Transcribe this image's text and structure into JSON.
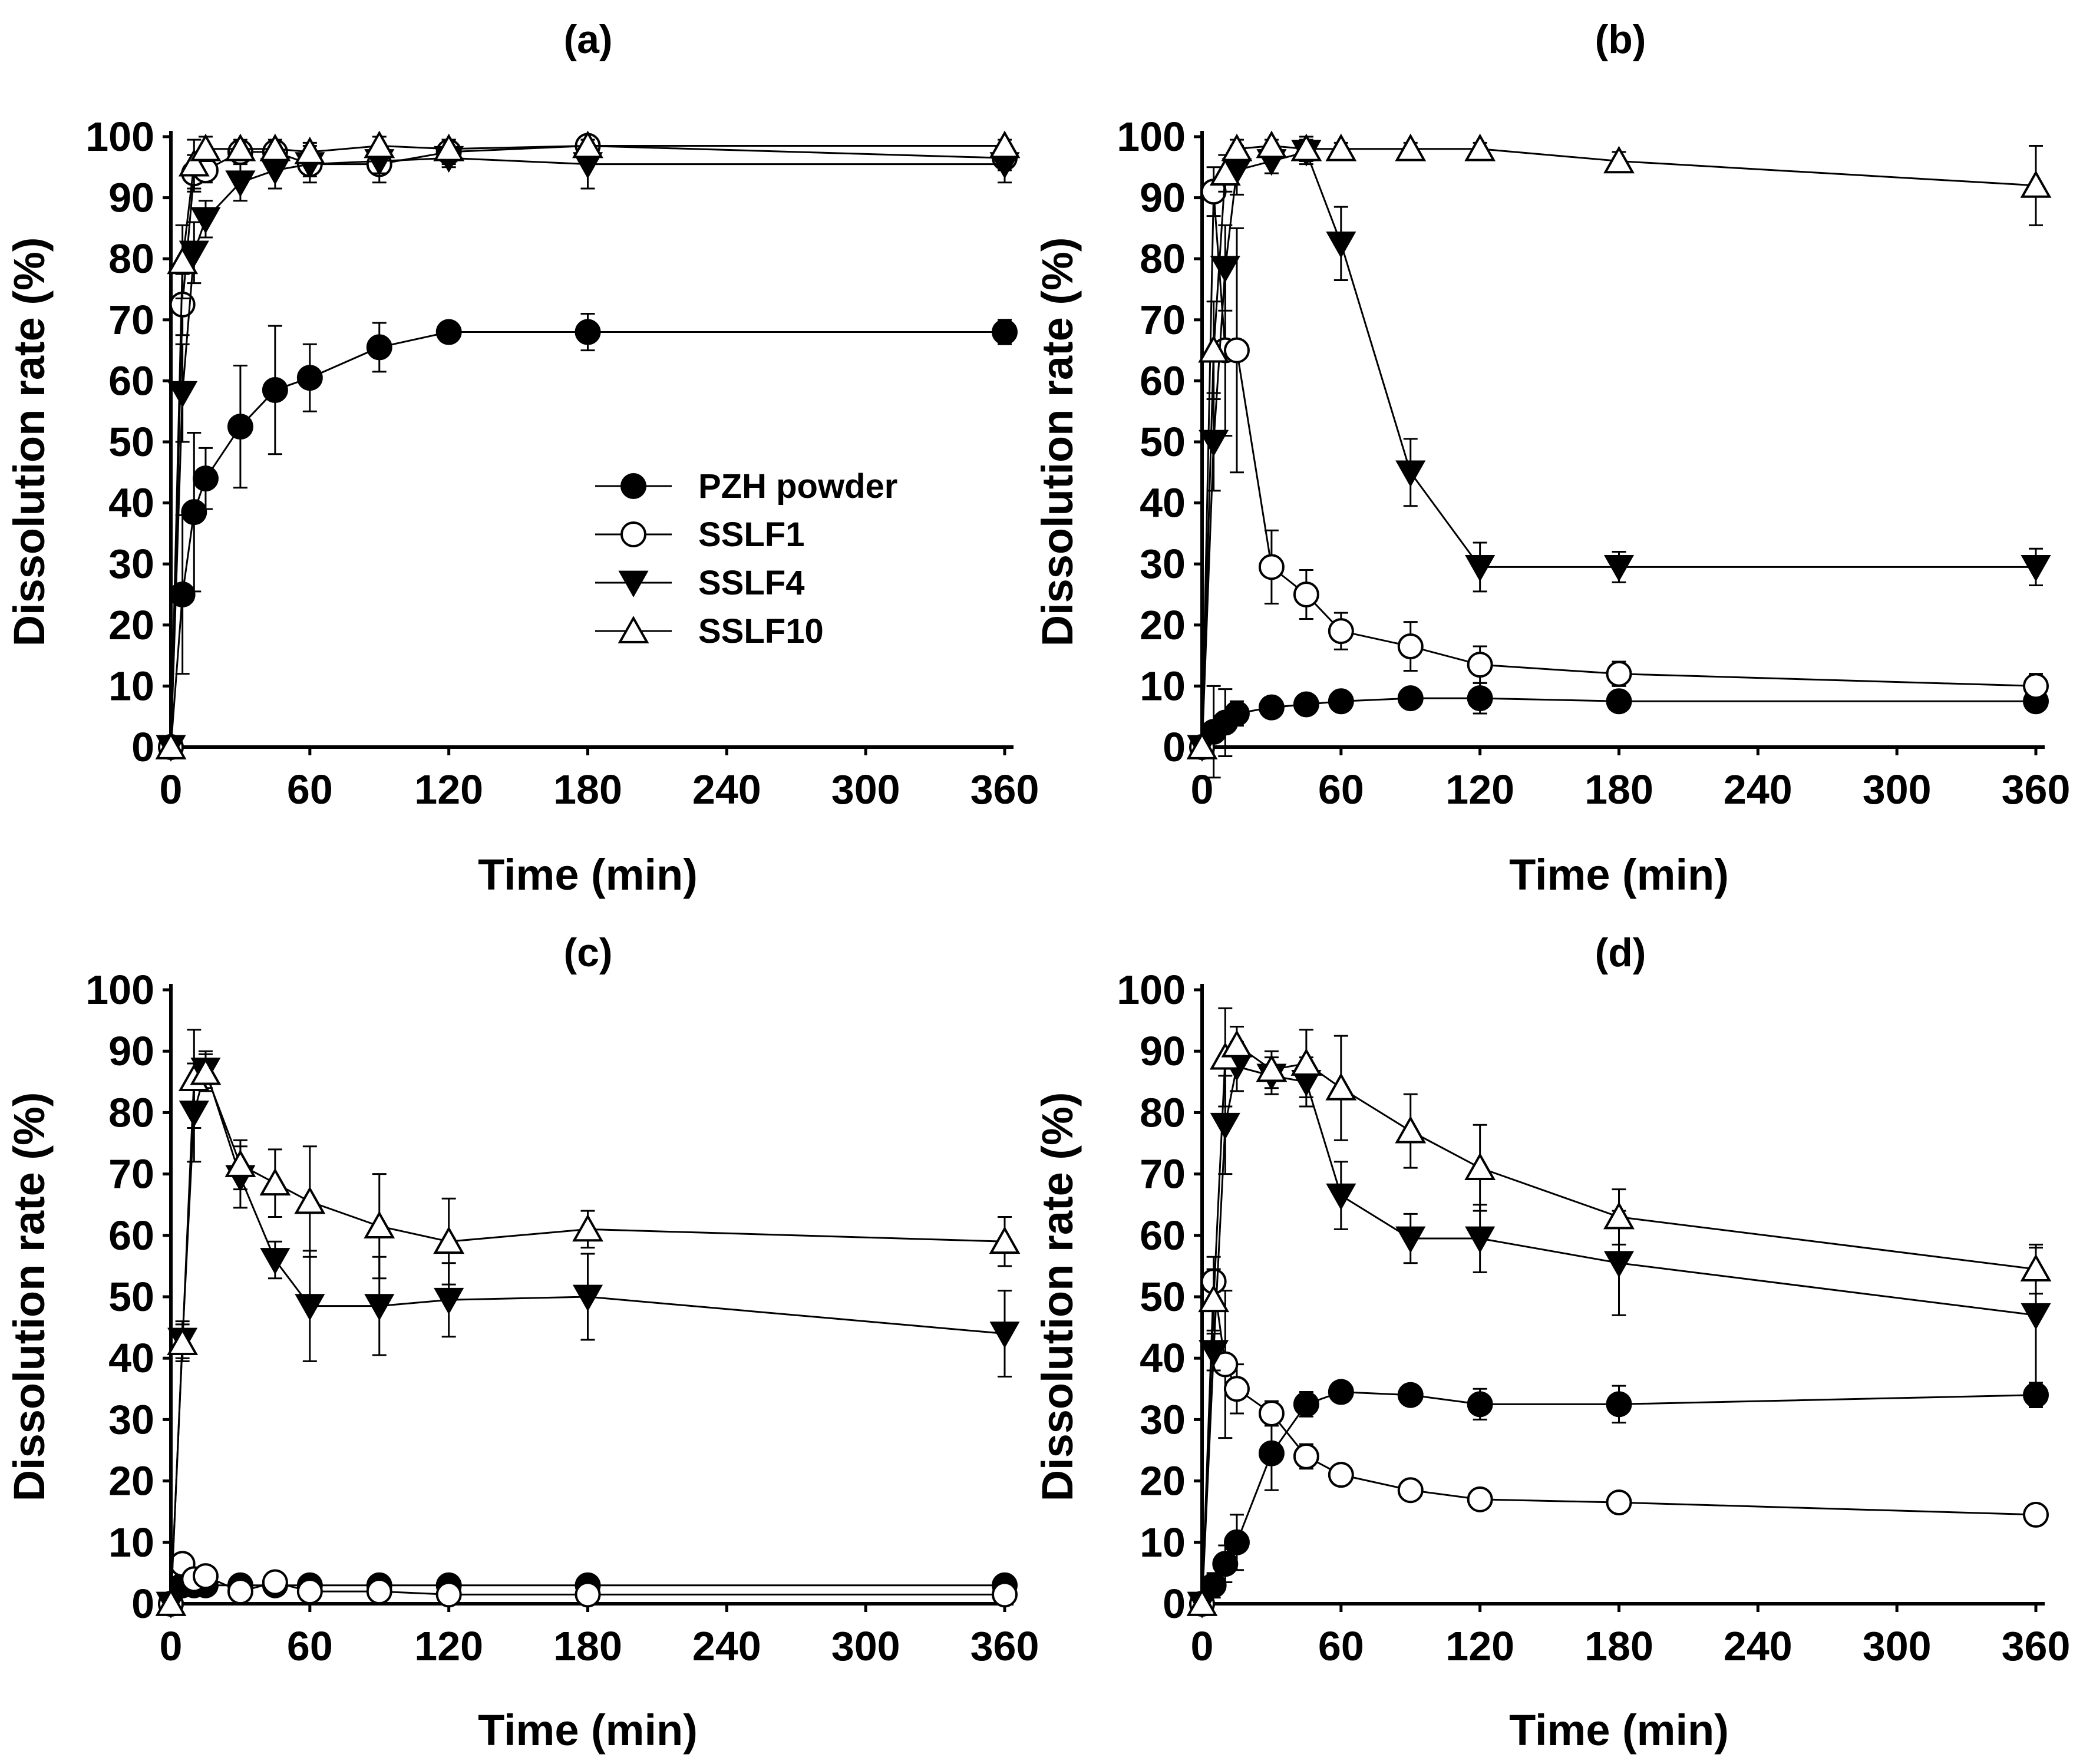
{
  "figure": {
    "legend": {
      "entries": [
        {
          "name": "PZH powder",
          "marker": "filled-circle"
        },
        {
          "name": "SSLF1",
          "marker": "open-circle"
        },
        {
          "name": "SSLF4",
          "marker": "filled-down-triangle"
        },
        {
          "name": "SSLF10",
          "marker": "open-up-triangle"
        }
      ]
    }
  },
  "chart_data": [
    {
      "type": "line",
      "title": "(a)",
      "xlabel": "Time (min)",
      "ylabel": "Dissolution rate (%)",
      "xlim": [
        0,
        360
      ],
      "ylim": [
        0,
        100
      ],
      "xticks": [
        0,
        60,
        120,
        180,
        240,
        300,
        360
      ],
      "yticks": [
        0,
        10,
        20,
        30,
        40,
        50,
        60,
        70,
        80,
        90,
        100
      ],
      "legend_position": "center",
      "series": [
        {
          "name": "PZH powder",
          "marker": "filled-circle",
          "x": [
            0,
            5,
            10,
            15,
            30,
            45,
            60,
            90,
            120,
            180,
            360
          ],
          "y": [
            0,
            25,
            38.5,
            44,
            52.5,
            58.5,
            60.5,
            65.5,
            68,
            68,
            68
          ],
          "err": [
            0,
            13,
            13,
            5,
            10,
            10.5,
            5.5,
            4,
            1,
            3,
            2
          ]
        },
        {
          "name": "SSLF1",
          "marker": "open-circle",
          "x": [
            0,
            5,
            10,
            15,
            30,
            45,
            60,
            90,
            120,
            180,
            360
          ],
          "y": [
            0,
            72.5,
            94,
            94.5,
            97.5,
            97.5,
            95.5,
            95.5,
            97.5,
            98.5,
            96.5
          ],
          "err": [
            0,
            5,
            3,
            2,
            1.5,
            1.5,
            3,
            3,
            2,
            1,
            2
          ]
        },
        {
          "name": "SSLF4",
          "marker": "filled-down-triangle",
          "x": [
            0,
            5,
            10,
            15,
            30,
            45,
            60,
            90,
            120,
            180,
            360
          ],
          "y": [
            0,
            58,
            81,
            86.5,
            92.5,
            94.5,
            95.5,
            96,
            96.5,
            95.5,
            95.5
          ],
          "err": [
            0,
            8,
            5,
            3,
            3,
            3,
            2,
            2,
            1.5,
            4,
            3
          ]
        },
        {
          "name": "SSLF10",
          "marker": "open-up-triangle",
          "x": [
            0,
            5,
            10,
            15,
            30,
            45,
            60,
            90,
            120,
            180,
            360
          ],
          "y": [
            0,
            79.5,
            95.5,
            98,
            98,
            98,
            97.5,
            98.5,
            98,
            98.5,
            98.5
          ],
          "err": [
            0,
            6,
            4,
            2,
            1.5,
            1.5,
            1.5,
            1.5,
            1.5,
            1,
            1
          ]
        }
      ]
    },
    {
      "type": "line",
      "title": "(b)",
      "xlabel": "Time (min)",
      "ylabel": "Dissolution rate (%)",
      "xlim": [
        0,
        360
      ],
      "ylim": [
        0,
        100
      ],
      "xticks": [
        0,
        60,
        120,
        180,
        240,
        300,
        360
      ],
      "yticks": [
        0,
        10,
        20,
        30,
        40,
        50,
        60,
        70,
        80,
        90,
        100
      ],
      "series": [
        {
          "name": "PZH powder",
          "marker": "filled-circle",
          "x": [
            0,
            5,
            10,
            15,
            30,
            45,
            60,
            90,
            120,
            180,
            360
          ],
          "y": [
            0,
            2.5,
            4,
            5.5,
            6.5,
            7,
            7.5,
            8,
            8,
            7.5,
            7.5
          ],
          "err": [
            0,
            7.5,
            5.5,
            2,
            1.5,
            1.5,
            1,
            1,
            2.5,
            1,
            1.5
          ]
        },
        {
          "name": "SSLF1",
          "marker": "open-circle",
          "x": [
            0,
            5,
            10,
            15,
            30,
            45,
            60,
            90,
            120,
            180,
            360
          ],
          "y": [
            0,
            91,
            65,
            65,
            29.5,
            25,
            19,
            16.5,
            13.5,
            12,
            10
          ],
          "err": [
            0,
            4,
            14,
            20,
            6,
            4,
            3,
            4,
            3,
            2,
            2
          ]
        },
        {
          "name": "SSLF4",
          "marker": "filled-down-triangle",
          "x": [
            0,
            5,
            10,
            15,
            30,
            45,
            60,
            90,
            120,
            180,
            360
          ],
          "y": [
            0,
            50,
            78.5,
            94.5,
            96,
            97.5,
            82.5,
            45,
            29.5,
            29.5,
            29.5
          ],
          "err": [
            0,
            8,
            7,
            4,
            2,
            2,
            6,
            5.5,
            4,
            2.5,
            3
          ]
        },
        {
          "name": "SSLF10",
          "marker": "open-up-triangle",
          "x": [
            0,
            5,
            10,
            15,
            30,
            45,
            60,
            90,
            120,
            180,
            360
          ],
          "y": [
            0,
            65,
            94,
            98,
            98.5,
            98,
            98,
            98,
            98,
            96,
            92
          ],
          "err": [
            0,
            8,
            3,
            1.5,
            1,
            2,
            1,
            1,
            1,
            1.5,
            6.5
          ]
        }
      ]
    },
    {
      "type": "line",
      "title": "(c)",
      "xlabel": "Time (min)",
      "ylabel": "Dissolution rate (%)",
      "xlim": [
        0,
        360
      ],
      "ylim": [
        0,
        100
      ],
      "xticks": [
        0,
        60,
        120,
        180,
        240,
        300,
        360
      ],
      "yticks": [
        0,
        10,
        20,
        30,
        40,
        50,
        60,
        70,
        80,
        90,
        100
      ],
      "series": [
        {
          "name": "PZH powder",
          "marker": "filled-circle",
          "x": [
            0,
            5,
            10,
            15,
            30,
            45,
            60,
            90,
            120,
            180,
            360
          ],
          "y": [
            0,
            3,
            3,
            3,
            3,
            3,
            3,
            3,
            3,
            3,
            3
          ],
          "err": [
            0,
            1,
            1,
            0.5,
            0.5,
            0.5,
            0.5,
            0.5,
            0.5,
            0.5,
            0.5
          ]
        },
        {
          "name": "SSLF1",
          "marker": "open-circle",
          "x": [
            0,
            5,
            10,
            15,
            30,
            45,
            60,
            90,
            120,
            180,
            360
          ],
          "y": [
            0,
            6.5,
            4,
            4.5,
            2,
            3.5,
            2,
            2,
            1.5,
            1.5,
            1.5
          ],
          "err": [
            0,
            1,
            1,
            1,
            0.5,
            0.5,
            0.5,
            0.5,
            0.5,
            0.5,
            0.5
          ]
        },
        {
          "name": "SSLF4",
          "marker": "filled-down-triangle",
          "x": [
            0,
            5,
            10,
            15,
            30,
            45,
            60,
            90,
            120,
            180,
            360
          ],
          "y": [
            0,
            43,
            80,
            87,
            69.5,
            56,
            48.5,
            48.5,
            49.5,
            50,
            44
          ],
          "err": [
            0,
            3,
            8,
            3,
            5,
            3,
            9,
            8,
            6,
            7,
            7
          ]
        },
        {
          "name": "SSLF10",
          "marker": "open-up-triangle",
          "x": [
            0,
            5,
            10,
            15,
            30,
            45,
            60,
            90,
            120,
            180,
            360
          ],
          "y": [
            0,
            42.5,
            85.5,
            86.5,
            71.5,
            68.5,
            65.5,
            61.5,
            59,
            61,
            59
          ],
          "err": [
            0,
            3,
            8,
            3,
            4,
            5.5,
            9,
            8.5,
            7,
            3,
            4
          ]
        }
      ]
    },
    {
      "type": "line",
      "title": "(d)",
      "xlabel": "Time (min)",
      "ylabel": "Dissolution rate (%)",
      "xlim": [
        0,
        360
      ],
      "ylim": [
        0,
        100
      ],
      "xticks": [
        0,
        60,
        120,
        180,
        240,
        300,
        360
      ],
      "yticks": [
        0,
        10,
        20,
        30,
        40,
        50,
        60,
        70,
        80,
        90,
        100
      ],
      "series": [
        {
          "name": "PZH powder",
          "marker": "filled-circle",
          "x": [
            0,
            5,
            10,
            15,
            30,
            45,
            60,
            90,
            120,
            180,
            360
          ],
          "y": [
            0,
            3,
            6.5,
            10,
            24.5,
            32.5,
            34.5,
            34,
            32.5,
            32.5,
            34
          ],
          "err": [
            0,
            2,
            3,
            4.5,
            6,
            2,
            1.5,
            1.5,
            2.5,
            3,
            2
          ]
        },
        {
          "name": "SSLF1",
          "marker": "open-circle",
          "x": [
            0,
            5,
            10,
            15,
            30,
            45,
            60,
            90,
            120,
            180,
            360
          ],
          "y": [
            0,
            52.5,
            39,
            35,
            31,
            24,
            21,
            18.5,
            17,
            16.5,
            14.5
          ],
          "err": [
            0,
            4,
            12,
            4,
            2,
            2,
            1.5,
            1.5,
            1.5,
            1,
            1
          ]
        },
        {
          "name": "SSLF4",
          "marker": "filled-down-triangle",
          "x": [
            0,
            5,
            10,
            15,
            30,
            45,
            60,
            90,
            120,
            180,
            360
          ],
          "y": [
            0,
            41,
            78,
            87.5,
            86,
            85,
            66.5,
            59.5,
            59.5,
            55.5,
            47
          ],
          "err": [
            0,
            3,
            8,
            4,
            3,
            4,
            5.5,
            4,
            5.5,
            8.5,
            11
          ]
        },
        {
          "name": "SSLF10",
          "marker": "open-up-triangle",
          "x": [
            0,
            5,
            10,
            15,
            30,
            45,
            60,
            90,
            120,
            180,
            360
          ],
          "y": [
            0,
            49.5,
            89,
            91,
            87,
            88,
            84,
            77,
            71,
            63,
            54.5
          ],
          "err": [
            0,
            5,
            8,
            3,
            3,
            5.5,
            8.5,
            6,
            7,
            4.5,
            4
          ]
        }
      ]
    }
  ]
}
